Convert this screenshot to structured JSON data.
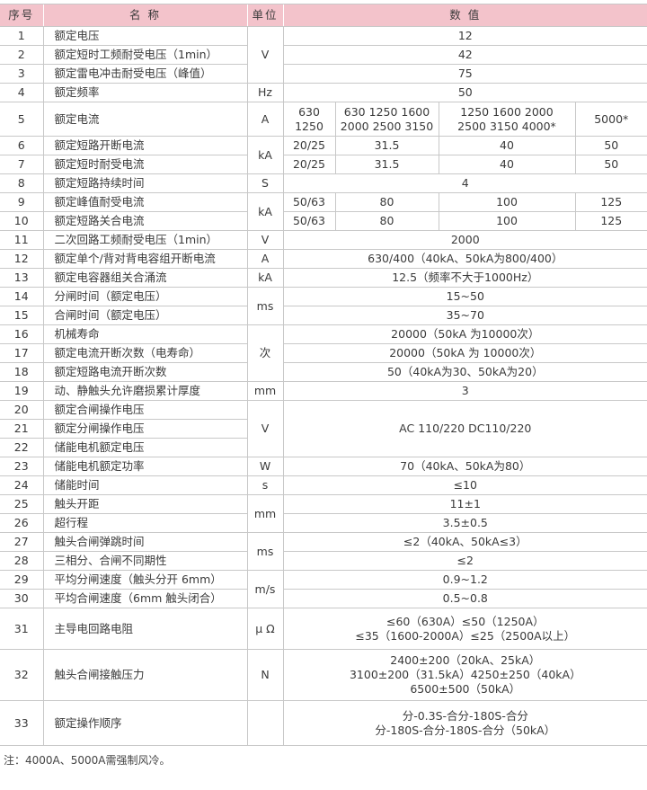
{
  "header": {
    "seq": "序号",
    "name": "名 称",
    "unit": "单位",
    "value": "数 值"
  },
  "rows": [
    {
      "no": "1",
      "name": "额定电压",
      "unit": "V",
      "value": "12"
    },
    {
      "no": "2",
      "name": "额定短时工频耐受电压（1min）",
      "value": "42"
    },
    {
      "no": "3",
      "name": "额定雷电冲击耐受电压（峰值）",
      "value": "75"
    },
    {
      "no": "4",
      "name": "额定频率",
      "unit": "Hz",
      "value": "50"
    },
    {
      "no": "5",
      "name": "额定电流",
      "unit": "A",
      "values": [
        "630\n1250",
        "630 1250 1600\n2000 2500 3150",
        "1250 1600 2000\n2500 3150 4000*",
        "5000*"
      ]
    },
    {
      "no": "6",
      "name": "额定短路开断电流",
      "unit": "kA",
      "values": [
        "20/25",
        "31.5",
        "40",
        "50"
      ]
    },
    {
      "no": "7",
      "name": "额定短时耐受电流",
      "values": [
        "20/25",
        "31.5",
        "40",
        "50"
      ]
    },
    {
      "no": "8",
      "name": "额定短路持续时间",
      "unit": "S",
      "value": "4"
    },
    {
      "no": "9",
      "name": "额定峰值耐受电流",
      "unit": "kA",
      "values": [
        "50/63",
        "80",
        "100",
        "125"
      ]
    },
    {
      "no": "10",
      "name": "额定短路关合电流",
      "values": [
        "50/63",
        "80",
        "100",
        "125"
      ]
    },
    {
      "no": "11",
      "name": "二次回路工频耐受电压（1min）",
      "unit": "V",
      "value": "2000"
    },
    {
      "no": "12",
      "name": "额定单个/背对背电容组开断电流",
      "unit": "A",
      "value": "630/400（40kA、50kA为800/400）"
    },
    {
      "no": "13",
      "name": "额定电容器组关合涌流",
      "unit": "kA",
      "value": "12.5（频率不大于1000Hz）"
    },
    {
      "no": "14",
      "name": "分闸时间（额定电压）",
      "unit": "ms",
      "value": "15~50"
    },
    {
      "no": "15",
      "name": "合闸时间（额定电压）",
      "value": "35~70"
    },
    {
      "no": "16",
      "name": "机械寿命",
      "unit": "次",
      "value": "20000（50kA 为10000次）"
    },
    {
      "no": "17",
      "name": "额定电流开断次数（电寿命）",
      "value": "20000（50kA 为 10000次）"
    },
    {
      "no": "18",
      "name": "额定短路电流开断次数",
      "value": "50（40kA为30、50kA为20）"
    },
    {
      "no": "19",
      "name": "动、静触头允许磨损累计厚度",
      "unit": "mm",
      "value": "3"
    },
    {
      "no": "20",
      "name": "额定合闸操作电压",
      "unit": "V",
      "value": "AC 110/220 DC110/220"
    },
    {
      "no": "21",
      "name": "额定分闸操作电压"
    },
    {
      "no": "22",
      "name": "储能电机额定电压"
    },
    {
      "no": "23",
      "name": "储能电机额定功率",
      "unit": "W",
      "value": "70（40kA、50kA为80）"
    },
    {
      "no": "24",
      "name": "储能时间",
      "unit": "s",
      "value": "≤10"
    },
    {
      "no": "25",
      "name": "触头开距",
      "unit": "mm",
      "value": "11±1"
    },
    {
      "no": "26",
      "name": "超行程",
      "value": "3.5±0.5"
    },
    {
      "no": "27",
      "name": "触头合闸弹跳时间",
      "unit": "ms",
      "value": "≤2（40kA、50kA≤3）"
    },
    {
      "no": "28",
      "name": "三相分、合闸不同期性",
      "value": "≤2"
    },
    {
      "no": "29",
      "name": "平均分闸速度（触头分开 6mm）",
      "unit": "m/s",
      "value": "0.9~1.2"
    },
    {
      "no": "30",
      "name": "平均合闸速度（6mm 触头闭合）",
      "value": "0.5~0.8"
    },
    {
      "no": "31",
      "name": "主导电回路电阻",
      "unit": "μ Ω",
      "value": "≤60（630A）≤50（1250A）\n≤35（1600-2000A）≤25（2500A以上）"
    },
    {
      "no": "32",
      "name": "触头合闸接触压力",
      "unit": "N",
      "value": "2400±200（20kA、25kA）\n3100±200（31.5kA）4250±250（40kA）\n6500±500（50kA）"
    },
    {
      "no": "33",
      "name": "额定操作顺序",
      "unit": "",
      "value": "分-0.3S-合分-180S-合分\n分-180S-合分-180S-合分（50kA）"
    }
  ],
  "note": "注：4000A、5000A需强制风冷。"
}
